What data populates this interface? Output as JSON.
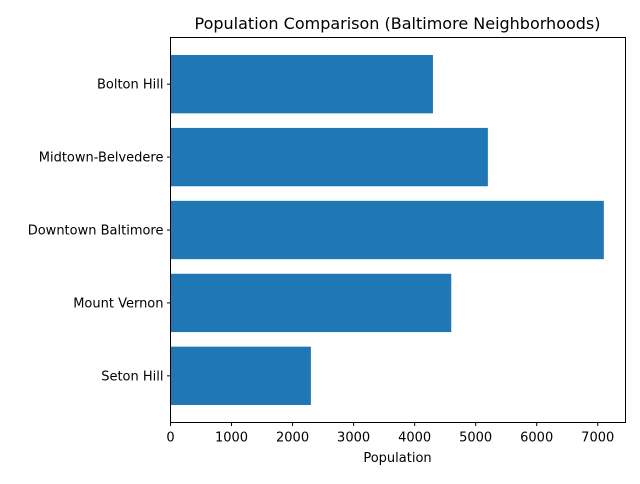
{
  "chart_data": {
    "type": "bar",
    "orientation": "horizontal",
    "title": "Population Comparison (Baltimore Neighborhoods)",
    "xlabel": "Population",
    "ylabel": "",
    "categories": [
      "Seton Hill",
      "Mount Vernon",
      "Downtown Baltimore",
      "Midtown-Belvedere",
      "Bolton Hill"
    ],
    "values": [
      2300,
      4600,
      7100,
      5200,
      4300
    ],
    "xlim": [
      0,
      7455
    ],
    "xticks": [
      0,
      1000,
      2000,
      3000,
      4000,
      5000,
      6000,
      7000
    ],
    "grid": false,
    "bar_color": "#1f77b4"
  }
}
